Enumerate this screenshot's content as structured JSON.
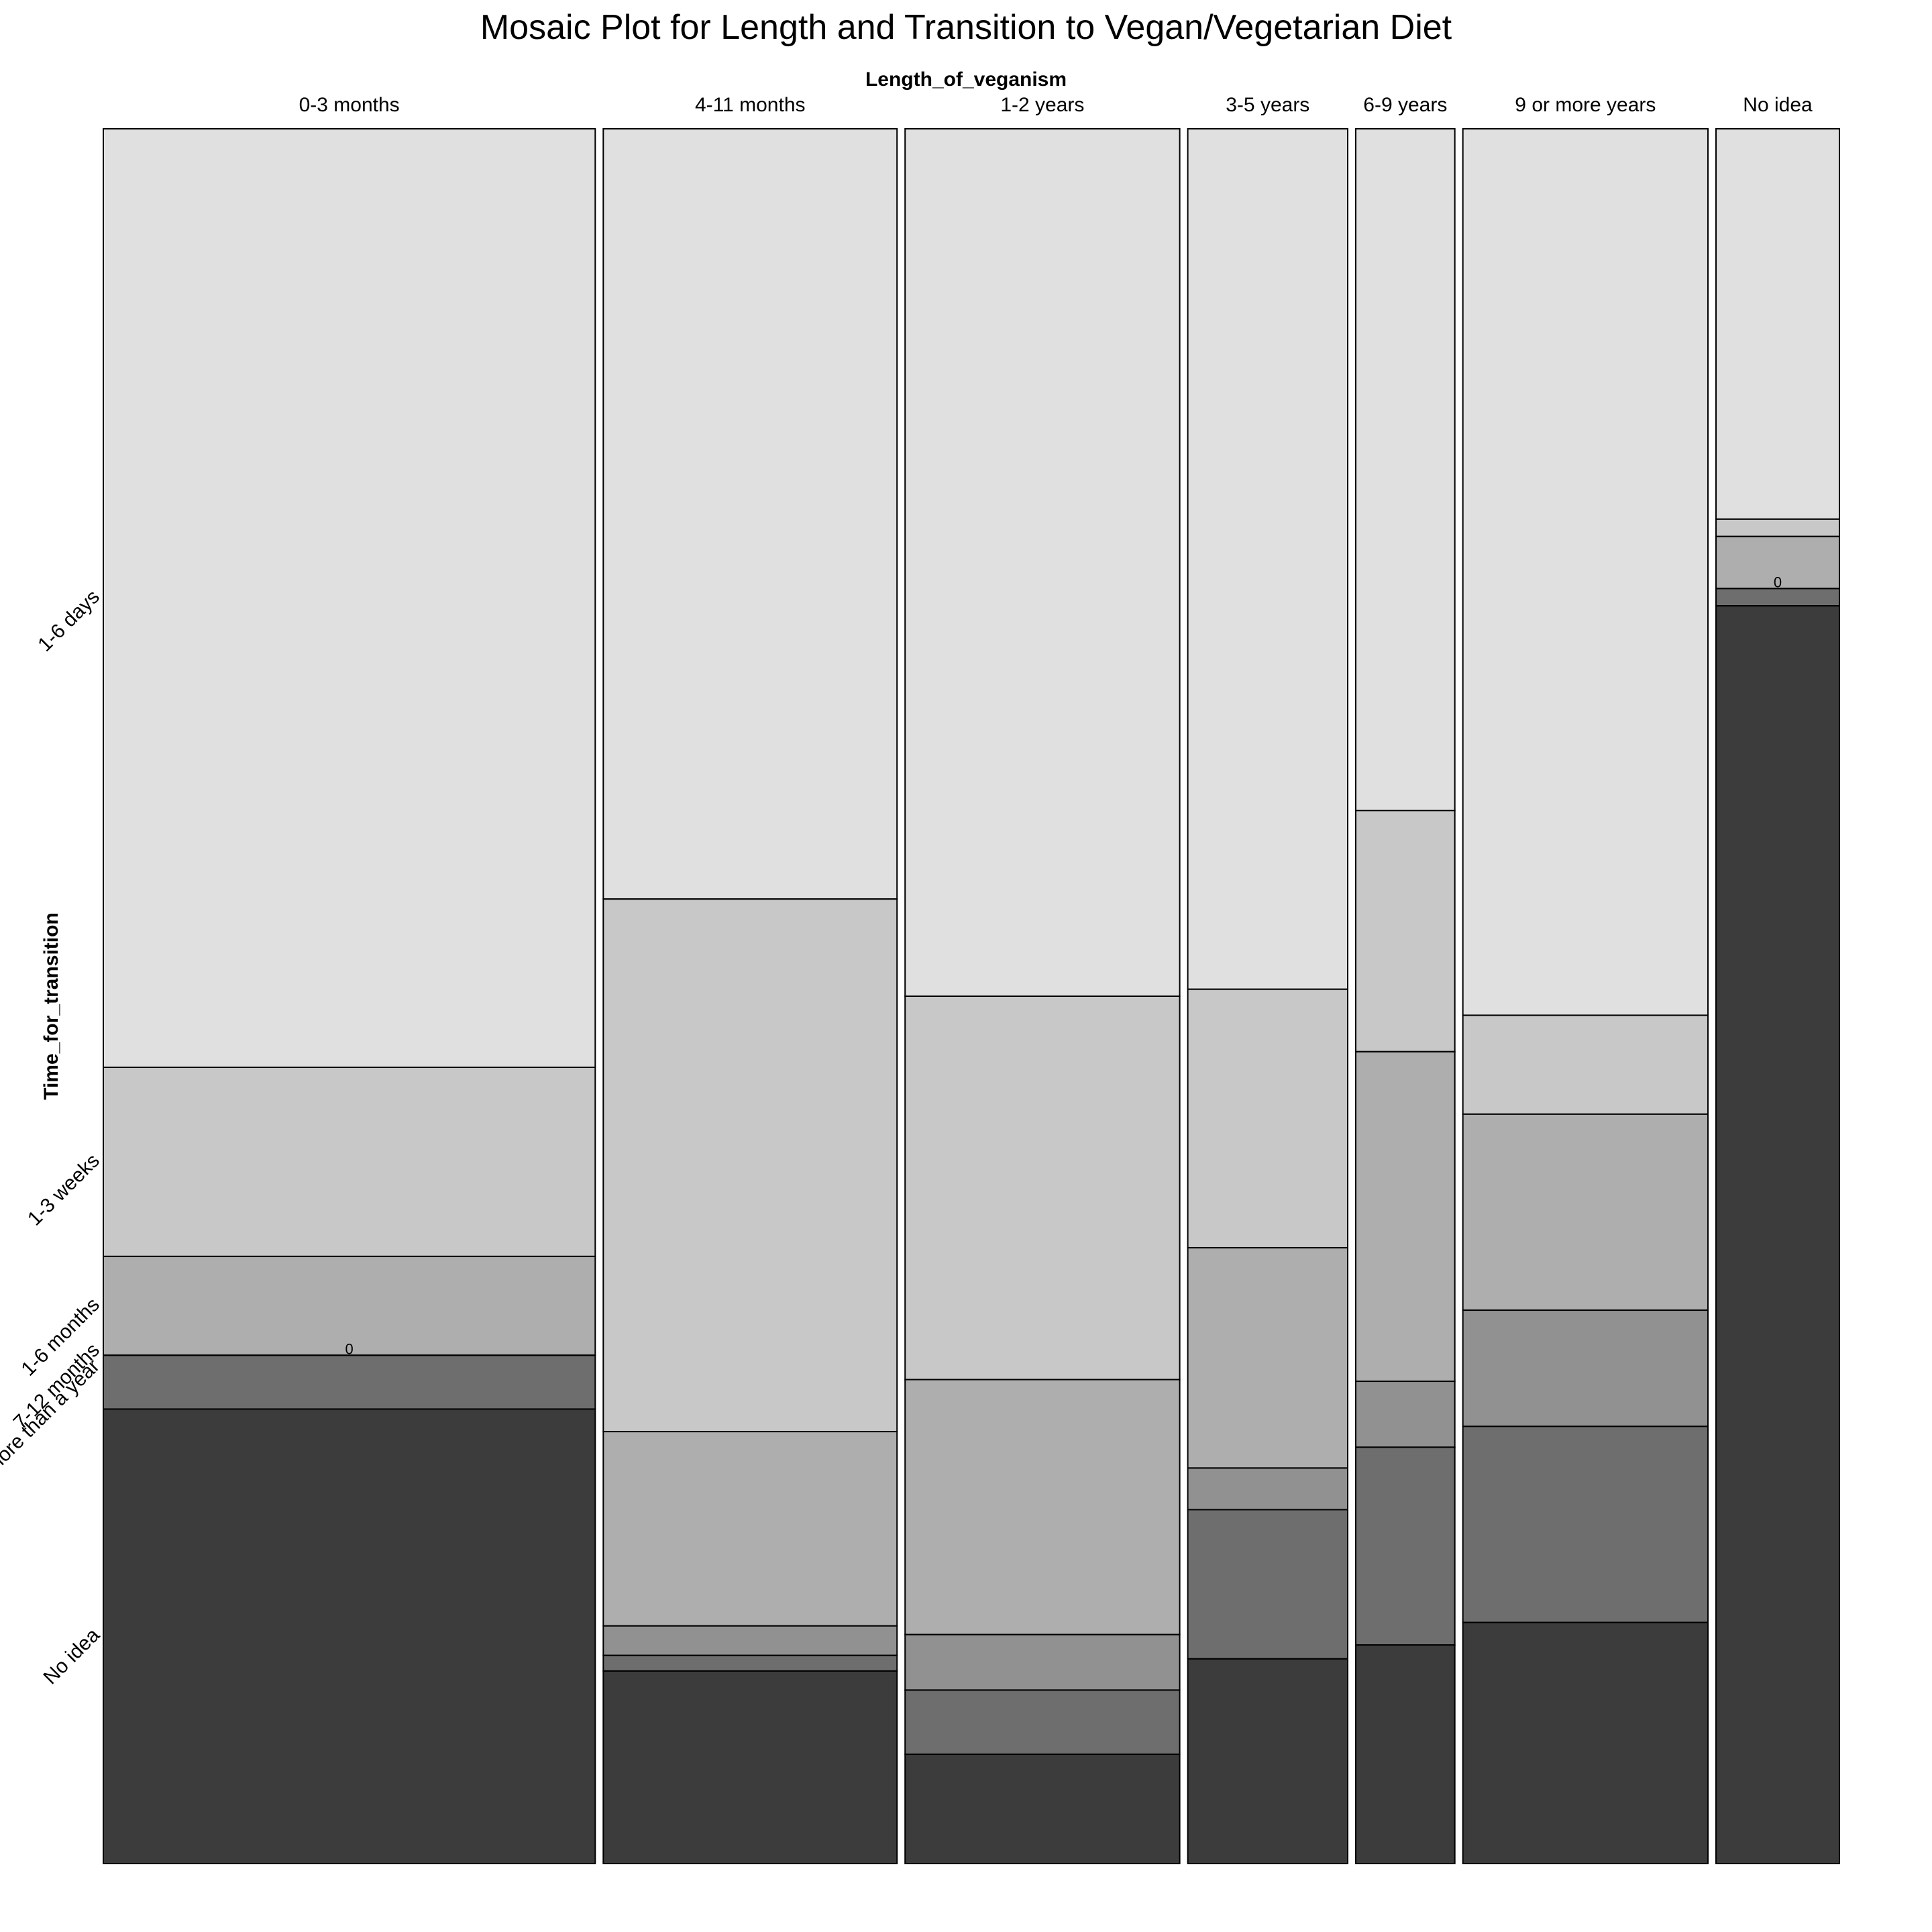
{
  "chart_data": {
    "type": "mosaic",
    "title": "Mosaic Plot for Length and Transition to Vegan/Vegetarian Diet",
    "xlabel": "Length_of_veganism",
    "ylabel": "Time_for_transition",
    "categories": [
      "0-3 months",
      "4-11 months",
      "1-2 years",
      "3-5 years",
      "6-9 years",
      "9 or more years",
      "No idea"
    ],
    "column_share": [
      0.283,
      0.169,
      0.158,
      0.092,
      0.057,
      0.141,
      0.071
    ],
    "levels": [
      "1-6 days",
      "1-3 weeks",
      "1-6 months",
      "7-12 months",
      "more than a year",
      "No idea"
    ],
    "level_colors": [
      "#e0e0e0",
      "#c8c8c8",
      "#aeaeae",
      "#919191",
      "#6e6e6e",
      "#3c3c3c"
    ],
    "y_label_levels": [
      "1-6 days",
      "1-3 weeks",
      "1-6 months",
      "7-12 months",
      "more than a year",
      "No idea"
    ],
    "proportions": [
      [
        0.541,
        0.109,
        0.057,
        0.0,
        0.031,
        0.262
      ],
      [
        0.444,
        0.307,
        0.112,
        0.017,
        0.009,
        0.111
      ],
      [
        0.5,
        0.221,
        0.147,
        0.032,
        0.037,
        0.063
      ],
      [
        0.496,
        0.149,
        0.127,
        0.024,
        0.086,
        0.118
      ],
      [
        0.393,
        0.139,
        0.19,
        0.038,
        0.114,
        0.126
      ],
      [
        0.511,
        0.057,
        0.113,
        0.067,
        0.113,
        0.139
      ],
      [
        0.225,
        0.01,
        0.03,
        0.0,
        0.01,
        0.725
      ]
    ],
    "zero_marker": "0"
  }
}
